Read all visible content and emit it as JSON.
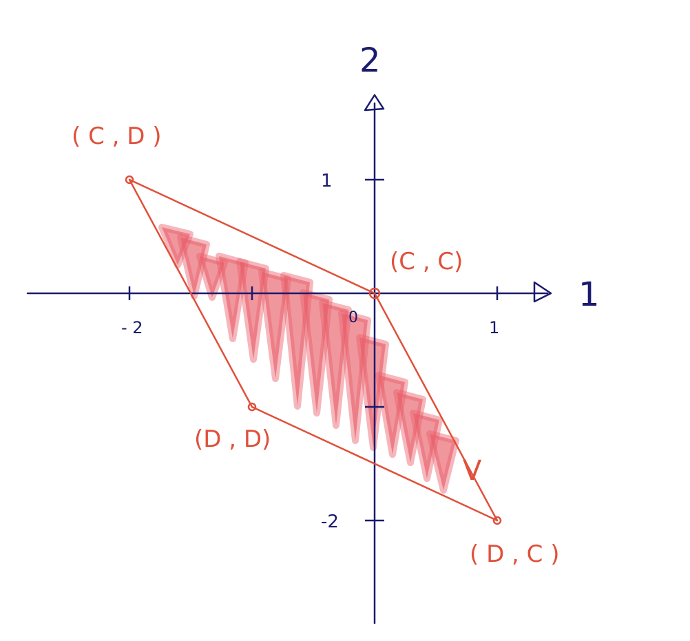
{
  "diagram": {
    "axis_color": "#1a1a6e",
    "shape_color": "#e0503a",
    "fill_color": "#e8606a",
    "x_axis_label": "1",
    "y_axis_label": "2",
    "x_ticks": [
      {
        "value": -2,
        "label": "- 2"
      },
      {
        "value": -1,
        "label": ""
      },
      {
        "value": 1,
        "label": "1"
      }
    ],
    "y_ticks": [
      {
        "value": 1,
        "label": "1"
      },
      {
        "value": -1,
        "label": ""
      },
      {
        "value": -2,
        "label": "-2"
      }
    ],
    "origin_label": "0",
    "region_label": "V",
    "vertices": [
      {
        "name": "CD",
        "x": -2,
        "y": 1,
        "label": "( C , D )"
      },
      {
        "name": "CC",
        "x": 0,
        "y": 0,
        "label": "(C , C)"
      },
      {
        "name": "DC",
        "x": 1,
        "y": -2,
        "label": "( D , C )"
      },
      {
        "name": "DD",
        "x": -1,
        "y": -1,
        "label": "(D , D)"
      }
    ]
  }
}
